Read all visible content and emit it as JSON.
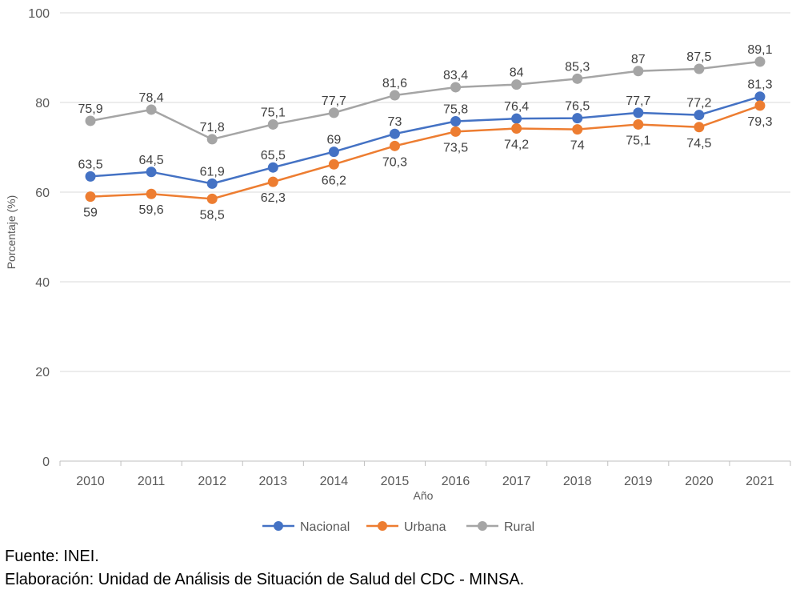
{
  "chart_data": {
    "type": "line",
    "categories": [
      "2010",
      "2011",
      "2012",
      "2013",
      "2014",
      "2015",
      "2016",
      "2017",
      "2018",
      "2019",
      "2020",
      "2021"
    ],
    "series": [
      {
        "name": "Nacional",
        "color": "#4472C4",
        "values": [
          63.5,
          64.5,
          61.9,
          65.5,
          69,
          73,
          75.8,
          76.4,
          76.5,
          77.7,
          77.2,
          81.3
        ],
        "labels": [
          "63,5",
          "64,5",
          "61,9",
          "65,5",
          "69",
          "73",
          "75,8",
          "76,4",
          "76,5",
          "77,7",
          "77,2",
          "81,3"
        ],
        "label_position": "above"
      },
      {
        "name": "Urbana",
        "color": "#ED7D31",
        "values": [
          59,
          59.6,
          58.5,
          62.3,
          66.2,
          70.3,
          73.5,
          74.2,
          74,
          75.1,
          74.5,
          79.3
        ],
        "labels": [
          "59",
          "59,6",
          "58,5",
          "62,3",
          "66,2",
          "70,3",
          "73,5",
          "74,2",
          "74",
          "75,1",
          "74,5",
          "79,3"
        ],
        "label_position": "below"
      },
      {
        "name": "Rural",
        "color": "#A5A5A5",
        "values": [
          75.9,
          78.4,
          71.8,
          75.1,
          77.7,
          81.6,
          83.4,
          84,
          85.3,
          87,
          87.5,
          89.1
        ],
        "labels": [
          "75,9",
          "78,4",
          "71,8",
          "75,1",
          "77,7",
          "81,6",
          "83,4",
          "84",
          "85,3",
          "87",
          "87,5",
          "89,1"
        ],
        "label_position": "above"
      }
    ],
    "xlabel": "Año",
    "ylabel": "Porcentaje (%)",
    "ylim": [
      0,
      100
    ],
    "yticks": [
      "0",
      "20",
      "40",
      "60",
      "80",
      "100"
    ],
    "grid": true,
    "legend_position": "bottom"
  },
  "source": {
    "line1": "Fuente: INEI.",
    "line2": "Elaboración: Unidad de Análisis de Situación de Salud del CDC - MINSA."
  }
}
